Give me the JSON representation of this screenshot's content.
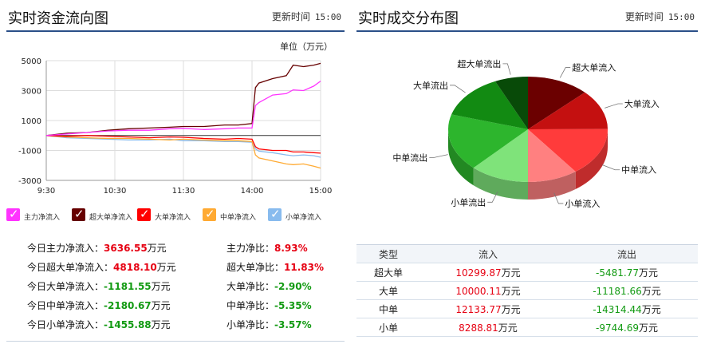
{
  "left": {
    "title": "实时资金流向图",
    "update_label": "更新时间",
    "update_time": "15:00",
    "unit": "单位（万元）",
    "legend": [
      {
        "label": "主力净流入",
        "color": "#ff33ff"
      },
      {
        "label": "超大单净流入",
        "color": "#660000"
      },
      {
        "label": "大单净流入",
        "color": "#ff0000"
      },
      {
        "label": "中单净流入",
        "color": "#ffaa33"
      },
      {
        "label": "小单净流入",
        "color": "#88bbee"
      }
    ],
    "stats_left": [
      {
        "label": "今日主力净流入：",
        "value": "3636.55",
        "unit": "万元",
        "tone": "red"
      },
      {
        "label": "今日超大单净流入：",
        "value": "4818.10",
        "unit": "万元",
        "tone": "red"
      },
      {
        "label": "今日大单净流入：",
        "value": "-1181.55",
        "unit": "万元",
        "tone": "green"
      },
      {
        "label": "今日中单净流入：",
        "value": "-2180.67",
        "unit": "万元",
        "tone": "green"
      },
      {
        "label": "今日小单净流入：",
        "value": "-1455.88",
        "unit": "万元",
        "tone": "green"
      }
    ],
    "stats_right": [
      {
        "label": "主力净比：",
        "value": "8.93%",
        "tone": "red"
      },
      {
        "label": "超大单净比：",
        "value": "11.83%",
        "tone": "red"
      },
      {
        "label": "大单净比：",
        "value": "-2.90%",
        "tone": "green"
      },
      {
        "label": "中单净比：",
        "value": "-5.35%",
        "tone": "green"
      },
      {
        "label": "小单净比：",
        "value": "-3.57%",
        "tone": "green"
      }
    ]
  },
  "right": {
    "title": "实时成交分布图",
    "update_label": "更新时间",
    "update_time": "15:00",
    "table_headers": [
      "类型",
      "流入",
      "流出"
    ],
    "table_rows": [
      {
        "type": "超大单",
        "inflow": "10299.87",
        "outflow": "-5481.77"
      },
      {
        "type": "大单",
        "inflow": "10000.11",
        "outflow": "-11181.66"
      },
      {
        "type": "中单",
        "inflow": "12133.77",
        "outflow": "-14314.44"
      },
      {
        "type": "小单",
        "inflow": "8288.81",
        "outflow": "-9744.69"
      }
    ],
    "table_unit": "万元"
  },
  "chart_data": [
    {
      "type": "line",
      "title": "实时资金流向图",
      "ylabel": "单位（万元）",
      "ylim": [
        -3000,
        5000
      ],
      "yticks": [
        5000,
        3000,
        1000,
        -1000,
        -3000
      ],
      "xticks": [
        "9:30",
        "10:30",
        "11:30",
        "14:00",
        "15:00"
      ],
      "grid": true,
      "legend_position": "bottom",
      "series": [
        {
          "name": "主力净流入",
          "color": "#ff33ff",
          "points": [
            [
              0,
              0
            ],
            [
              0.3,
              100
            ],
            [
              0.6,
              200
            ],
            [
              0.9,
              300
            ],
            [
              1.2,
              350
            ],
            [
              1.5,
              350
            ],
            [
              1.8,
              450
            ],
            [
              2,
              480
            ],
            [
              2.3,
              400
            ],
            [
              2.6,
              450
            ],
            [
              2.8,
              500
            ],
            [
              3,
              500
            ],
            [
              3.05,
              2000
            ],
            [
              3.1,
              2200
            ],
            [
              3.3,
              2700
            ],
            [
              3.5,
              2800
            ],
            [
              3.6,
              3050
            ],
            [
              3.75,
              3000
            ],
            [
              3.9,
              3300
            ],
            [
              4,
              3636.55
            ]
          ]
        },
        {
          "name": "超大单净流入",
          "color": "#660000",
          "points": [
            [
              0,
              0
            ],
            [
              0.3,
              150
            ],
            [
              0.6,
              200
            ],
            [
              0.9,
              350
            ],
            [
              1.2,
              450
            ],
            [
              1.5,
              500
            ],
            [
              1.8,
              550
            ],
            [
              2,
              600
            ],
            [
              2.3,
              600
            ],
            [
              2.6,
              700
            ],
            [
              2.8,
              700
            ],
            [
              3,
              800
            ],
            [
              3.05,
              3200
            ],
            [
              3.1,
              3500
            ],
            [
              3.3,
              3800
            ],
            [
              3.5,
              4000
            ],
            [
              3.6,
              4700
            ],
            [
              3.75,
              4600
            ],
            [
              3.9,
              4700
            ],
            [
              4,
              4818.1
            ]
          ]
        },
        {
          "name": "大单净流入",
          "color": "#ff0000",
          "points": [
            [
              0,
              0
            ],
            [
              0.3,
              -50
            ],
            [
              0.6,
              0
            ],
            [
              0.9,
              -50
            ],
            [
              1.2,
              -100
            ],
            [
              1.5,
              -150
            ],
            [
              1.8,
              -100
            ],
            [
              2,
              -120
            ],
            [
              2.3,
              -200
            ],
            [
              2.6,
              -250
            ],
            [
              2.8,
              -200
            ],
            [
              3,
              -250
            ],
            [
              3.05,
              -750
            ],
            [
              3.1,
              -900
            ],
            [
              3.3,
              -1000
            ],
            [
              3.5,
              -1000
            ],
            [
              3.6,
              -1100
            ],
            [
              3.75,
              -1100
            ],
            [
              3.9,
              -1150
            ],
            [
              4,
              -1181.55
            ]
          ]
        },
        {
          "name": "中单净流入",
          "color": "#ffaa33",
          "points": [
            [
              0,
              0
            ],
            [
              0.3,
              -100
            ],
            [
              0.6,
              -150
            ],
            [
              0.9,
              -200
            ],
            [
              1.2,
              -200
            ],
            [
              1.5,
              -250
            ],
            [
              1.8,
              -300
            ],
            [
              2,
              -250
            ],
            [
              2.3,
              -300
            ],
            [
              2.6,
              -350
            ],
            [
              2.8,
              -350
            ],
            [
              3,
              -400
            ],
            [
              3.05,
              -1300
            ],
            [
              3.1,
              -1500
            ],
            [
              3.3,
              -1700
            ],
            [
              3.5,
              -1900
            ],
            [
              3.6,
              -1950
            ],
            [
              3.75,
              -1900
            ],
            [
              3.9,
              -2050
            ],
            [
              4,
              -2180.67
            ]
          ]
        },
        {
          "name": "小单净流入",
          "color": "#88bbee",
          "points": [
            [
              0,
              0
            ],
            [
              0.3,
              -150
            ],
            [
              0.6,
              -200
            ],
            [
              0.9,
              -250
            ],
            [
              1.2,
              -300
            ],
            [
              1.5,
              -300
            ],
            [
              1.8,
              -250
            ],
            [
              2,
              -350
            ],
            [
              2.3,
              -350
            ],
            [
              2.6,
              -400
            ],
            [
              2.8,
              -400
            ],
            [
              3,
              -450
            ],
            [
              3.05,
              -900
            ],
            [
              3.1,
              -1050
            ],
            [
              3.3,
              -1150
            ],
            [
              3.5,
              -1300
            ],
            [
              3.6,
              -1350
            ],
            [
              3.75,
              -1300
            ],
            [
              3.9,
              -1350
            ],
            [
              4,
              -1455.88
            ]
          ]
        }
      ]
    },
    {
      "type": "pie",
      "title": "实时成交分布图",
      "slices": [
        {
          "label": "超大单流入",
          "value": 10299.87,
          "color": "#6b0000"
        },
        {
          "label": "大单流入",
          "value": 10000.11,
          "color": "#c41010"
        },
        {
          "label": "中单流入",
          "value": 12133.77,
          "color": "#ff3b3b"
        },
        {
          "label": "小单流入",
          "value": 8288.81,
          "color": "#ff8080"
        },
        {
          "label": "小单流出",
          "value": 9744.69,
          "color": "#7fe37a"
        },
        {
          "label": "中单流出",
          "value": 14314.44,
          "color": "#2db52d"
        },
        {
          "label": "大单流出",
          "value": 11181.66,
          "color": "#128a12"
        },
        {
          "label": "超大单流出",
          "value": 5481.77,
          "color": "#084a08"
        }
      ]
    }
  ]
}
